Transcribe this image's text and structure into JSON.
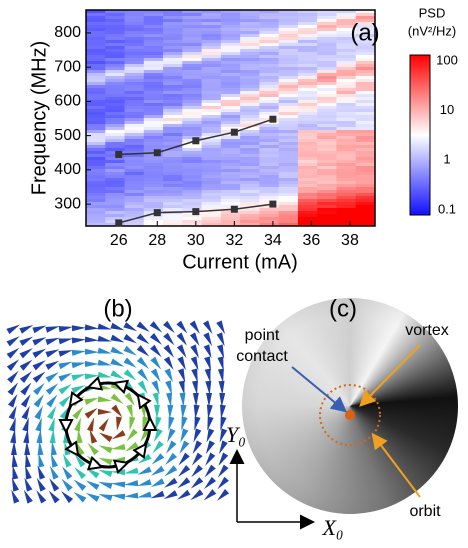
{
  "chart_data": {
    "type": "heatmap-lines",
    "panel_label": "(a)",
    "x_label": "Current (mA)",
    "y_label": "Frequency (MHz)",
    "x": [
      26,
      28,
      30,
      32,
      34
    ],
    "series": [
      {
        "color": "#333333",
        "values": [
          445,
          450,
          485,
          510,
          548
        ]
      },
      {
        "color": "#333333",
        "values": [
          245,
          275,
          278,
          285,
          300
        ]
      }
    ],
    "xlim": [
      24.3,
      39.3
    ],
    "xticks": [
      26,
      28,
      30,
      32,
      34,
      36,
      38
    ],
    "ylim": [
      236,
      867
    ],
    "yticks": [
      300,
      400,
      500,
      600,
      700,
      800
    ],
    "colorbar": {
      "title": "PSD",
      "unit": "(nV²/Hz)",
      "log": true,
      "lim": [
        0.079,
        132
      ],
      "ticks": [
        0.1,
        1,
        10,
        100
      ]
    }
  },
  "panel_b": {
    "label": "(b)"
  },
  "panel_c": {
    "label": "(c)",
    "point_contact": [
      "point",
      "contact"
    ],
    "vortex": "vortex",
    "orbit": "orbit",
    "y_axis": "Y₀",
    "x_axis": "X₀"
  }
}
